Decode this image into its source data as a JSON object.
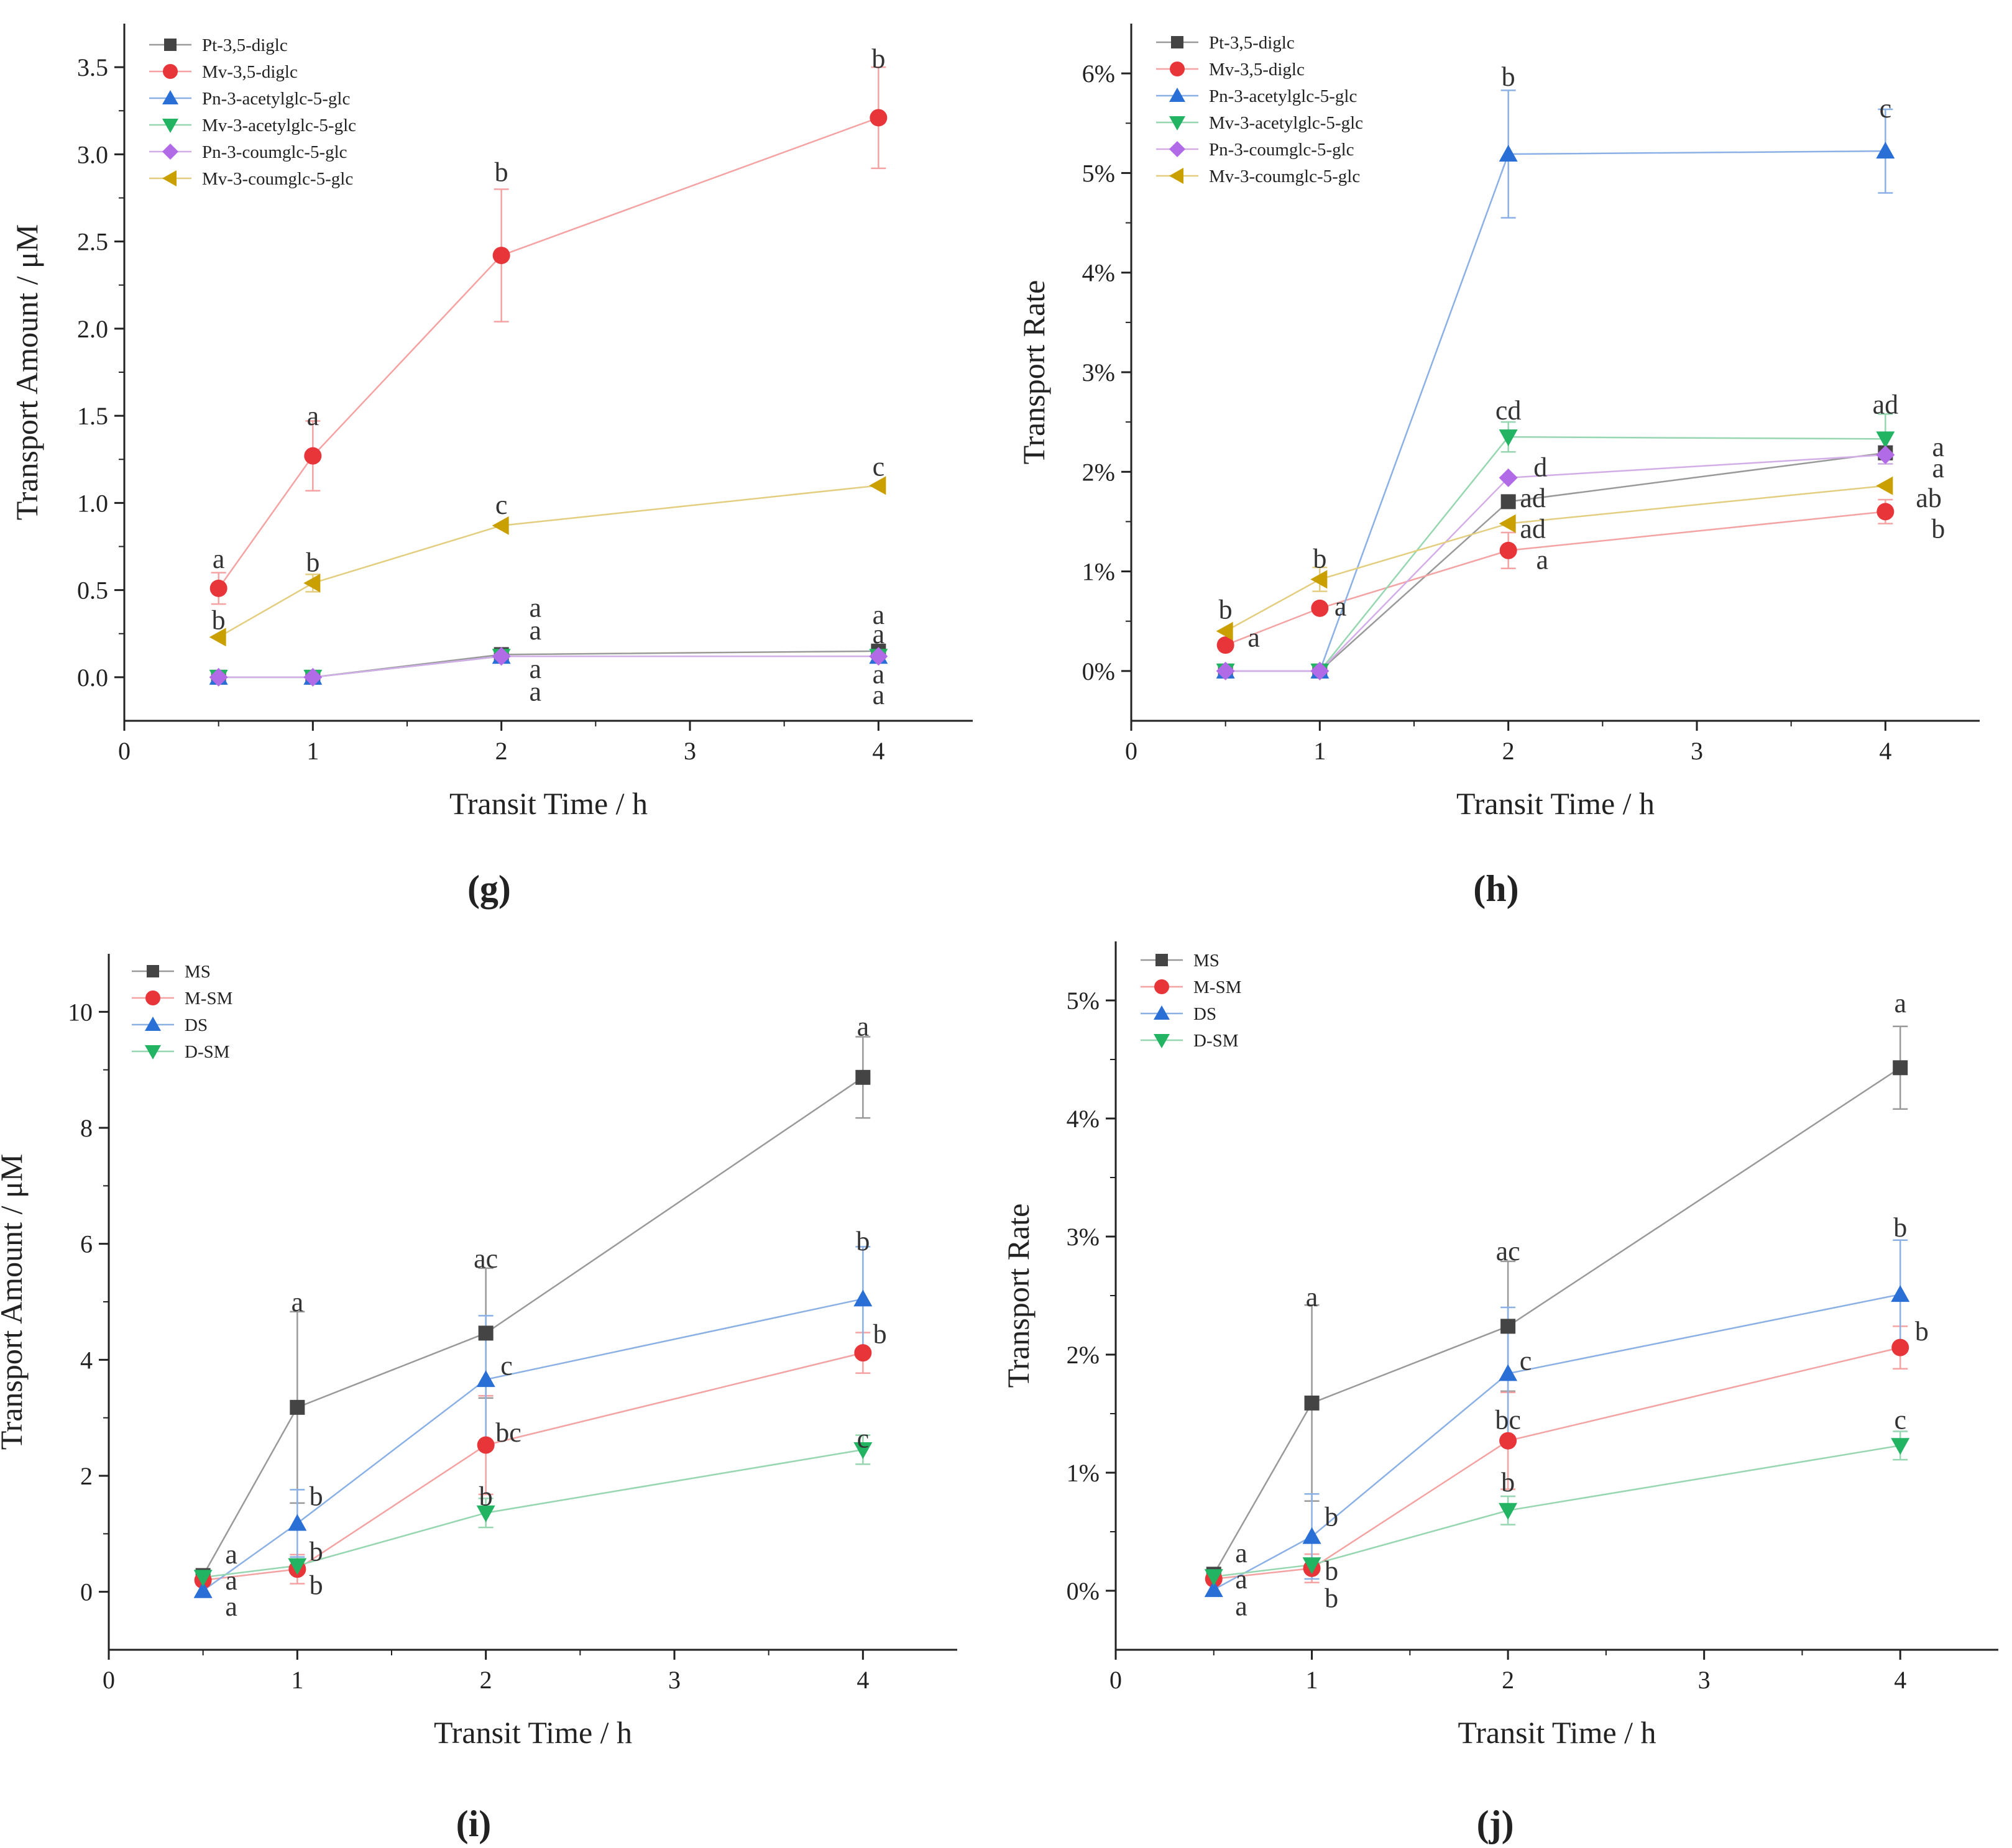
{
  "chart_data": [
    {
      "type": "line",
      "panel_label": "(g)",
      "xlabel": "Transit Time / h",
      "ylabel": "Transport Amount / μM",
      "xlim": [
        0,
        4.5
      ],
      "ylim": [
        -0.25,
        3.75
      ],
      "xticks": [
        0,
        1,
        2,
        3,
        4
      ],
      "xtick_labels": [
        "0",
        "1",
        "2",
        "3",
        "4"
      ],
      "yticks": [
        0,
        0.5,
        1.0,
        1.5,
        2.0,
        2.5,
        3.0,
        3.5
      ],
      "ytick_labels": [
        "0.0",
        "0.5",
        "1.0",
        "1.5",
        "2.0",
        "2.5",
        "3.0",
        "3.5"
      ],
      "legend_position": "top-left",
      "x": [
        0.5,
        1,
        2,
        4
      ],
      "series": [
        {
          "name": "Pt-3,5-diglc",
          "marker": "square",
          "color": "#444444",
          "line_color": "#999999",
          "values": [
            0,
            0,
            0.13,
            0.15
          ],
          "errors": [
            0,
            0,
            0,
            0
          ]
        },
        {
          "name": "Mv-3,5-diglc",
          "marker": "circle",
          "color": "#e8353a",
          "line_color": "#f4a2a2",
          "values": [
            0.51,
            1.27,
            2.42,
            3.21
          ],
          "errors": [
            0.09,
            0.2,
            0.38,
            0.29
          ]
        },
        {
          "name": "Pn-3-acetylglc-5-glc",
          "marker": "triangle-up",
          "color": "#2a6fd6",
          "line_color": "#8ab0e6",
          "values": [
            0,
            0,
            0.12,
            0.12
          ],
          "errors": [
            0,
            0,
            0,
            0
          ]
        },
        {
          "name": "Mv-3-acetylglc-5-glc",
          "marker": "triangle-down",
          "color": "#22b363",
          "line_color": "#96d6b0",
          "values": [
            0,
            0,
            0.12,
            0.12
          ],
          "errors": [
            0,
            0,
            0,
            0
          ]
        },
        {
          "name": "Pn-3-coumglc-5-glc",
          "marker": "diamond",
          "color": "#b26be6",
          "line_color": "#d3ade8",
          "values": [
            0,
            0,
            0.12,
            0.12
          ],
          "errors": [
            0,
            0,
            0,
            0
          ]
        },
        {
          "name": "Mv-3-coumglc-5-glc",
          "marker": "triangle-left",
          "color": "#c9a000",
          "line_color": "#e3ce80",
          "values": [
            0.23,
            0.54,
            0.87,
            1.1
          ],
          "errors": [
            0,
            0.05,
            0,
            0
          ]
        }
      ],
      "annotations": [
        {
          "text": "a",
          "x": 0.5,
          "y": 0.68
        },
        {
          "text": "b",
          "x": 0.5,
          "y": 0.33
        },
        {
          "text": "a",
          "x": 1,
          "y": 1.5
        },
        {
          "text": "b",
          "x": 1,
          "y": 0.66
        },
        {
          "text": "b",
          "x": 2,
          "y": 2.9
        },
        {
          "text": "c",
          "x": 2,
          "y": 0.99
        },
        {
          "text": "a",
          "x": 2.18,
          "y": 0.4
        },
        {
          "text": "a",
          "x": 2.18,
          "y": 0.27
        },
        {
          "text": "a",
          "x": 2.18,
          "y": 0.05
        },
        {
          "text": "a",
          "x": 2.18,
          "y": -0.08
        },
        {
          "text": "b",
          "x": 4,
          "y": 3.55
        },
        {
          "text": "c",
          "x": 4,
          "y": 1.21
        },
        {
          "text": "a",
          "x": 4,
          "y": 0.36
        },
        {
          "text": "a",
          "x": 4,
          "y": 0.25
        },
        {
          "text": "a",
          "x": 4,
          "y": 0.02
        },
        {
          "text": "a",
          "x": 4,
          "y": -0.1
        }
      ]
    },
    {
      "type": "line",
      "panel_label": "(h)",
      "xlabel": "Transit Time / h",
      "ylabel": "Transport Rate",
      "xlim": [
        0,
        4.5
      ],
      "ylim": [
        -0.005,
        0.065
      ],
      "xticks": [
        0,
        1,
        2,
        3,
        4
      ],
      "xtick_labels": [
        "0",
        "1",
        "2",
        "3",
        "4"
      ],
      "yticks": [
        0,
        0.01,
        0.02,
        0.03,
        0.04,
        0.05,
        0.06
      ],
      "ytick_labels": [
        "0%",
        "1%",
        "2%",
        "3%",
        "4%",
        "5%",
        "6%"
      ],
      "legend_position": "top-left",
      "x": [
        0.5,
        1,
        2,
        4
      ],
      "series": [
        {
          "name": "Pt-3,5-diglc",
          "marker": "square",
          "color": "#444444",
          "line_color": "#999999",
          "values": [
            0,
            0,
            0.017,
            0.0219
          ],
          "errors": [
            0,
            0,
            0,
            0
          ]
        },
        {
          "name": "Mv-3,5-diglc",
          "marker": "circle",
          "color": "#e8353a",
          "line_color": "#f4a2a2",
          "values": [
            0.0026,
            0.0063,
            0.0121,
            0.016
          ],
          "errors": [
            0,
            0,
            0.0018,
            0.0012
          ]
        },
        {
          "name": "Pn-3-acetylglc-5-glc",
          "marker": "triangle-up",
          "color": "#2a6fd6",
          "line_color": "#8ab0e6",
          "values": [
            0,
            0,
            0.0519,
            0.0522
          ],
          "errors": [
            0,
            0,
            0.0064,
            0.0042
          ]
        },
        {
          "name": "Mv-3-acetylglc-5-glc",
          "marker": "triangle-down",
          "color": "#22b363",
          "line_color": "#96d6b0",
          "values": [
            0,
            0,
            0.0235,
            0.0233
          ],
          "errors": [
            0,
            0,
            0.0015,
            0.0025
          ]
        },
        {
          "name": "Pn-3-coumglc-5-glc",
          "marker": "diamond",
          "color": "#b26be6",
          "line_color": "#d3ade8",
          "values": [
            0,
            0,
            0.0194,
            0.0217
          ],
          "errors": [
            0,
            0,
            0,
            0.0009
          ]
        },
        {
          "name": "Mv-3-coumglc-5-glc",
          "marker": "triangle-left",
          "color": "#c9a000",
          "line_color": "#e3ce80",
          "values": [
            0.004,
            0.0092,
            0.0148,
            0.0186
          ],
          "errors": [
            0,
            0.0012,
            0,
            0
          ]
        }
      ],
      "annotations": [
        {
          "text": "b",
          "x": 0.5,
          "y": 0.0062
        },
        {
          "text": "a",
          "x": 0.65,
          "y": 0.0034
        },
        {
          "text": "b",
          "x": 1,
          "y": 0.0113
        },
        {
          "text": "a",
          "x": 1.11,
          "y": 0.0065
        },
        {
          "text": "b",
          "x": 2,
          "y": 0.0597
        },
        {
          "text": "cd",
          "x": 2,
          "y": 0.0262
        },
        {
          "text": "d",
          "x": 2.17,
          "y": 0.0205
        },
        {
          "text": "ad",
          "x": 2.13,
          "y": 0.0174
        },
        {
          "text": "ad",
          "x": 2.13,
          "y": 0.0143
        },
        {
          "text": "a",
          "x": 2.18,
          "y": 0.0112
        },
        {
          "text": "c",
          "x": 4,
          "y": 0.0565
        },
        {
          "text": "ad",
          "x": 4,
          "y": 0.0268
        },
        {
          "text": "a",
          "x": 4.28,
          "y": 0.0225
        },
        {
          "text": "a",
          "x": 4.28,
          "y": 0.0204
        },
        {
          "text": "ab",
          "x": 4.23,
          "y": 0.0174
        },
        {
          "text": "b",
          "x": 4.28,
          "y": 0.0143
        }
      ]
    },
    {
      "type": "line",
      "panel_label": "(i)",
      "xlabel": "Transit Time / h",
      "ylabel": "Transport Amount / μM",
      "xlim": [
        0,
        4.5
      ],
      "ylim": [
        -1,
        11
      ],
      "xticks": [
        0,
        1,
        2,
        3,
        4
      ],
      "xtick_labels": [
        "0",
        "1",
        "2",
        "3",
        "4"
      ],
      "yticks": [
        0,
        2,
        4,
        6,
        8,
        10
      ],
      "ytick_labels": [
        "0",
        "2",
        "4",
        "6",
        "8",
        "10"
      ],
      "legend_position": "top-left",
      "x": [
        0.5,
        1,
        2,
        4
      ],
      "series": [
        {
          "name": "MS",
          "marker": "square",
          "color": "#444444",
          "line_color": "#999999",
          "values": [
            0.28,
            3.18,
            4.46,
            8.87
          ],
          "errors": [
            0,
            1.65,
            1.12,
            0.7
          ]
        },
        {
          "name": "M-SM",
          "marker": "circle",
          "color": "#e8353a",
          "line_color": "#f4a2a2",
          "values": [
            0.2,
            0.39,
            2.53,
            4.12
          ],
          "errors": [
            0.05,
            0.25,
            0.85,
            0.35
          ]
        },
        {
          "name": "DS",
          "marker": "triangle-up",
          "color": "#2a6fd6",
          "line_color": "#8ab0e6",
          "values": [
            0.02,
            1.18,
            3.66,
            5.05
          ],
          "errors": [
            0,
            0.58,
            1.1,
            0.9
          ]
        },
        {
          "name": "D-SM",
          "marker": "triangle-down",
          "color": "#22b363",
          "line_color": "#96d6b0",
          "values": [
            0.25,
            0.45,
            1.36,
            2.45
          ],
          "errors": [
            0,
            0,
            0.25,
            0.25
          ]
        }
      ],
      "annotations": [
        {
          "text": "a",
          "x": 0.65,
          "y": 0.65
        },
        {
          "text": "a",
          "x": 0.65,
          "y": 0.2
        },
        {
          "text": "a",
          "x": 0.65,
          "y": -0.25
        },
        {
          "text": "a",
          "x": 1,
          "y": 5.0
        },
        {
          "text": "b",
          "x": 1.1,
          "y": 1.65
        },
        {
          "text": "b",
          "x": 1.1,
          "y": 0.7
        },
        {
          "text": "b",
          "x": 1.1,
          "y": 0.12
        },
        {
          "text": "ac",
          "x": 2,
          "y": 5.75
        },
        {
          "text": "c",
          "x": 2.11,
          "y": 3.9
        },
        {
          "text": "bc",
          "x": 2.12,
          "y": 2.75
        },
        {
          "text": "b",
          "x": 2,
          "y": 1.65
        },
        {
          "text": "a",
          "x": 4,
          "y": 9.75
        },
        {
          "text": "b",
          "x": 4,
          "y": 6.05
        },
        {
          "text": "b",
          "x": 4.09,
          "y": 4.45
        },
        {
          "text": "c",
          "x": 4,
          "y": 2.65
        }
      ]
    },
    {
      "type": "line",
      "panel_label": "(j)",
      "xlabel": "Transit Time / h",
      "ylabel": "Transport Rate",
      "xlim": [
        0,
        4.5
      ],
      "ylim": [
        -0.005,
        0.055
      ],
      "xticks": [
        0,
        1,
        2,
        3,
        4
      ],
      "xtick_labels": [
        "0",
        "1",
        "2",
        "3",
        "4"
      ],
      "yticks": [
        0,
        0.01,
        0.02,
        0.03,
        0.04,
        0.05
      ],
      "ytick_labels": [
        "0%",
        "1%",
        "2%",
        "3%",
        "4%",
        "5%"
      ],
      "legend_position": "top-left",
      "x": [
        0.5,
        1,
        2,
        4
      ],
      "series": [
        {
          "name": "MS",
          "marker": "square",
          "color": "#444444",
          "line_color": "#999999",
          "values": [
            0.0014,
            0.0159,
            0.0224,
            0.0443
          ],
          "errors": [
            0,
            0.0083,
            0.0055,
            0.0035
          ]
        },
        {
          "name": "M-SM",
          "marker": "circle",
          "color": "#e8353a",
          "line_color": "#f4a2a2",
          "values": [
            0.001,
            0.0019,
            0.0127,
            0.0206
          ],
          "errors": [
            0.0002,
            0.0012,
            0.0041,
            0.0018
          ]
        },
        {
          "name": "DS",
          "marker": "triangle-up",
          "color": "#2a6fd6",
          "line_color": "#8ab0e6",
          "values": [
            0.0001,
            0.0046,
            0.0184,
            0.0251
          ],
          "errors": [
            0,
            0.0036,
            0.0056,
            0.0046
          ]
        },
        {
          "name": "D-SM",
          "marker": "triangle-down",
          "color": "#22b363",
          "line_color": "#96d6b0",
          "values": [
            0.0012,
            0.0022,
            0.0068,
            0.0123
          ],
          "errors": [
            0,
            0,
            0.0012,
            0.0012
          ]
        }
      ],
      "annotations": [
        {
          "text": "a",
          "x": 0.64,
          "y": 0.0032
        },
        {
          "text": "a",
          "x": 0.64,
          "y": 0.001
        },
        {
          "text": "a",
          "x": 0.64,
          "y": -0.0013
        },
        {
          "text": "a",
          "x": 1,
          "y": 0.0249
        },
        {
          "text": "b",
          "x": 1.1,
          "y": 0.0063
        },
        {
          "text": "b",
          "x": 1.1,
          "y": 0.0017
        },
        {
          "text": "b",
          "x": 1.1,
          "y": -0.0006
        },
        {
          "text": "ac",
          "x": 2,
          "y": 0.0288
        },
        {
          "text": "c",
          "x": 2.09,
          "y": 0.0195
        },
        {
          "text": "bc",
          "x": 2,
          "y": 0.0145
        },
        {
          "text": "b",
          "x": 2,
          "y": 0.0092
        },
        {
          "text": "a",
          "x": 4,
          "y": 0.0498
        },
        {
          "text": "b",
          "x": 4,
          "y": 0.0308
        },
        {
          "text": "b",
          "x": 4.11,
          "y": 0.022
        },
        {
          "text": "c",
          "x": 4,
          "y": 0.0145
        }
      ]
    }
  ]
}
